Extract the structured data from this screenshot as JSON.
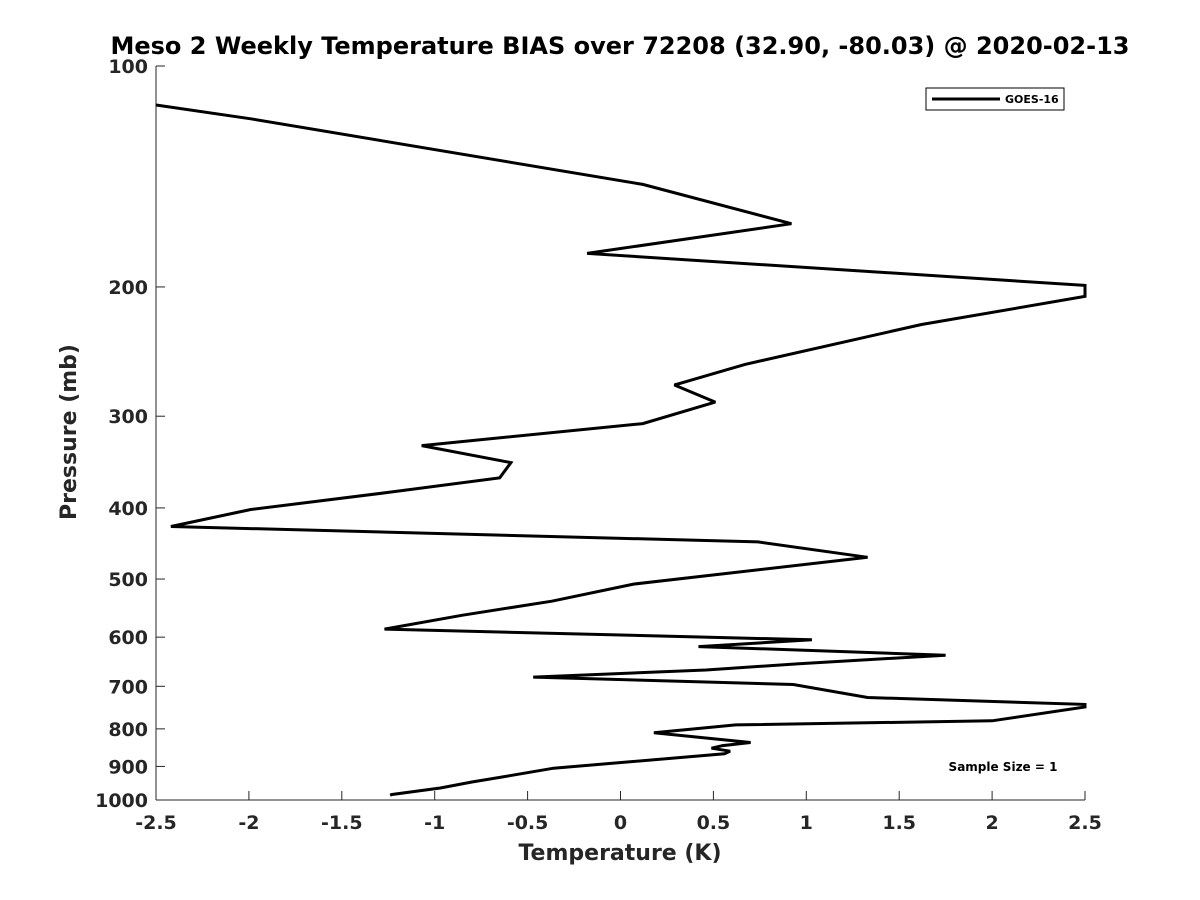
{
  "chart_data": {
    "type": "line",
    "title": "Meso 2 Weekly Temperature BIAS over 72208 (32.90, -80.03) @ 2020-02-13",
    "xlabel": "Temperature (K)",
    "ylabel": "Pressure (mb)",
    "xlim": [
      -2.5,
      2.5
    ],
    "ylim": [
      1000,
      100
    ],
    "yscale": "log",
    "y_reversed": true,
    "grid": false,
    "legend_position": "top-right",
    "xticks": [
      -2.5,
      -2,
      -1.5,
      -1,
      -0.5,
      0,
      0.5,
      1,
      1.5,
      2,
      2.5
    ],
    "xtick_labels": [
      "-2.5",
      "-2",
      "-1.5",
      "-1",
      "-0.5",
      "0",
      "0.5",
      "1",
      "1.5",
      "2",
      "2.5"
    ],
    "yticks": [
      100,
      200,
      300,
      400,
      500,
      600,
      700,
      800,
      900,
      1000
    ],
    "ytick_labels": [
      "100",
      "200",
      "300",
      "400",
      "500",
      "600",
      "700",
      "800",
      "900",
      "1000"
    ],
    "annotation": "Sample Size = 1",
    "series": [
      {
        "name": "GOES-16",
        "color": "#000000",
        "points": [
          [
            -1.24,
            985
          ],
          [
            -1.23,
            983
          ],
          [
            -0.97,
            963
          ],
          [
            -0.8,
            945
          ],
          [
            -0.6,
            927
          ],
          [
            -0.36,
            905
          ],
          [
            0.56,
            865
          ],
          [
            0.59,
            858
          ],
          [
            0.49,
            850
          ],
          [
            0.55,
            843
          ],
          [
            0.7,
            835
          ],
          [
            0.18,
            810
          ],
          [
            0.62,
            790
          ],
          [
            2.0,
            780
          ],
          [
            2.5,
            747
          ],
          [
            2.5,
            741
          ],
          [
            1.33,
            725
          ],
          [
            0.93,
            696
          ],
          [
            -0.47,
            680
          ],
          [
            0.46,
            665
          ],
          [
            0.96,
            652
          ],
          [
            1.75,
            635
          ],
          [
            0.42,
            618
          ],
          [
            1.03,
            605
          ],
          [
            -1.27,
            585
          ],
          [
            -0.85,
            560
          ],
          [
            -0.37,
            536
          ],
          [
            0.07,
            508
          ],
          [
            1.33,
            467
          ],
          [
            0.74,
            445
          ],
          [
            -2.42,
            424
          ],
          [
            -1.99,
            402
          ],
          [
            -1.25,
            381
          ],
          [
            -0.65,
            364
          ],
          [
            -0.59,
            347
          ],
          [
            -1.07,
            329
          ],
          [
            0.12,
            307
          ],
          [
            0.51,
            287
          ],
          [
            0.29,
            272
          ],
          [
            0.67,
            255
          ],
          [
            1.62,
            225
          ],
          [
            2.5,
            206
          ],
          [
            2.5,
            199
          ],
          [
            -0.18,
            180
          ],
          [
            0.92,
            164
          ],
          [
            0.12,
            145
          ],
          [
            -1.99,
            118
          ],
          [
            -2.5,
            113
          ]
        ]
      }
    ]
  }
}
